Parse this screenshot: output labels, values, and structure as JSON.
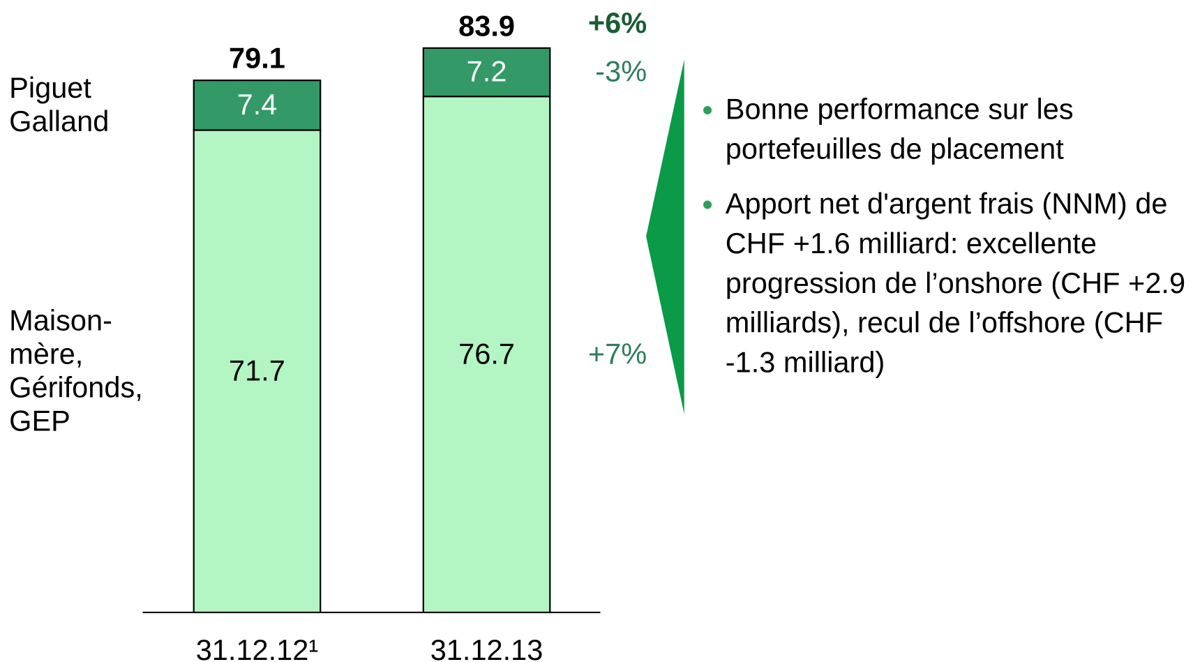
{
  "chart_data": {
    "type": "stacked_bar",
    "categories": [
      "31.12.12¹",
      "31.12.13"
    ],
    "series": [
      {
        "name": "Maison-mère, Gérifonds, GEP",
        "color": "#b3f5c3",
        "label_color": "#000000",
        "values": [
          71.7,
          76.7
        ],
        "change": 7,
        "change_label": "+7%"
      },
      {
        "name": "Piguet Galland",
        "color": "#339966",
        "label_color": "#ffffff",
        "values": [
          7.4,
          7.2
        ],
        "change": -3,
        "change_label": "-3%"
      }
    ],
    "totals": [
      79.1,
      83.9
    ],
    "total_change": 6,
    "total_change_label": "+6%",
    "bullets": [
      "Bonne performance sur les portefeuilles de placement",
      "Apport net d'argent frais (NNM) de CHF +1.6 milliard: excellente progression de l’onshore (CHF +2.9 milliards), recul de l’offshore (CHF -1.3 milliard)"
    ]
  }
}
